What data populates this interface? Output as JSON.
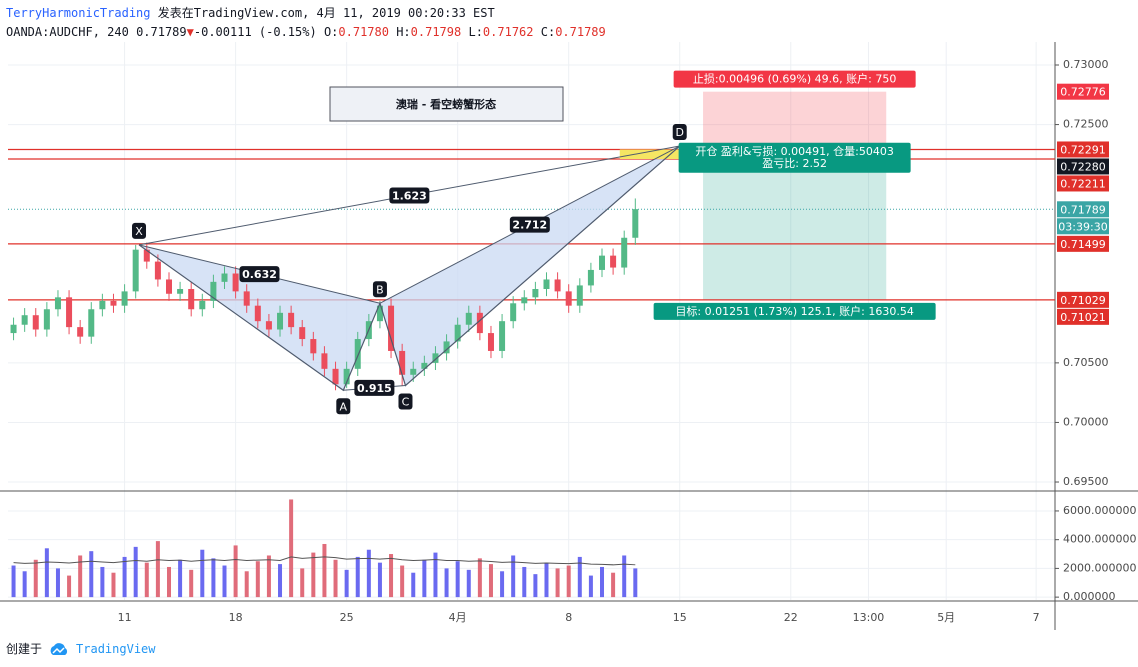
{
  "header": {
    "author": "TerryHarmonicTrading",
    "published": "发表在TradingView.com, 4月 11, 2019 00:20:33 EST",
    "symbol": "OANDA:AUDCHF, 240",
    "last": "0.71789",
    "arrow": "▼",
    "change": "-0.00111 (-0.15%)",
    "ohlc": [
      {
        "label": "O:",
        "value": "0.71780"
      },
      {
        "label": "H:",
        "value": "0.71798"
      },
      {
        "label": "L:",
        "value": "0.71762"
      },
      {
        "label": "C:",
        "value": "0.71789"
      }
    ]
  },
  "chart_data": {
    "type": "candlestick",
    "title": "澳瑞 - 看空螃蟹形态",
    "xlim": [
      -0.5,
      93.8
    ],
    "xticks": [
      {
        "value": 10,
        "label": "11"
      },
      {
        "value": 20,
        "label": "18"
      },
      {
        "value": 30,
        "label": "25"
      },
      {
        "value": 40,
        "label": "4月"
      },
      {
        "value": 50,
        "label": "8"
      },
      {
        "value": 60,
        "label": "15"
      },
      {
        "value": 70,
        "label": "22"
      },
      {
        "value": 77,
        "label": "13:00"
      },
      {
        "value": 84,
        "label": "5月"
      },
      {
        "value": 92.1,
        "label": "7"
      }
    ],
    "ylim": [
      0.69433,
      0.73193
    ],
    "yticks": [
      {
        "value": 0.73,
        "label": "0.73000"
      },
      {
        "value": 0.725,
        "label": "0.72500"
      },
      {
        "value": 0.705,
        "label": "0.70500"
      },
      {
        "value": 0.7,
        "label": "0.70000"
      },
      {
        "value": 0.695,
        "label": "0.69500"
      }
    ],
    "grid": true,
    "up_color": "#53b987",
    "down_color": "#eb4d5c",
    "open": [
      0.7075,
      0.7082,
      0.709,
      0.7078,
      0.7095,
      0.7105,
      0.708,
      0.7072,
      0.7095,
      0.7102,
      0.7098,
      0.711,
      0.7145,
      0.7135,
      0.712,
      0.7108,
      0.7112,
      0.7095,
      0.7102,
      0.7118,
      0.7125,
      0.711,
      0.7098,
      0.7085,
      0.7078,
      0.7092,
      0.708,
      0.707,
      0.7058,
      0.7045,
      0.7032,
      0.7045,
      0.707,
      0.7085,
      0.7098,
      0.706,
      0.704,
      0.7045,
      0.705,
      0.7058,
      0.7068,
      0.7082,
      0.7092,
      0.7075,
      0.706,
      0.7085,
      0.71,
      0.7105,
      0.7112,
      0.712,
      0.711,
      0.7098,
      0.7115,
      0.7128,
      0.714,
      0.713,
      0.7155
    ],
    "high": [
      0.7088,
      0.7096,
      0.7096,
      0.7101,
      0.7111,
      0.7111,
      0.7086,
      0.7101,
      0.7108,
      0.7108,
      0.7116,
      0.7149,
      0.7151,
      0.7141,
      0.7126,
      0.7118,
      0.7118,
      0.7108,
      0.7124,
      0.7131,
      0.7131,
      0.7116,
      0.7104,
      0.7091,
      0.7098,
      0.7098,
      0.7086,
      0.7076,
      0.7064,
      0.7051,
      0.7051,
      0.7076,
      0.7091,
      0.7102,
      0.7104,
      0.7066,
      0.7051,
      0.7056,
      0.7064,
      0.7074,
      0.7088,
      0.7098,
      0.7098,
      0.7081,
      0.7091,
      0.7106,
      0.7111,
      0.7118,
      0.7126,
      0.7126,
      0.7116,
      0.7121,
      0.7134,
      0.7146,
      0.7146,
      0.7161,
      0.7188
    ],
    "low": [
      0.7069,
      0.7076,
      0.7072,
      0.7072,
      0.7089,
      0.7074,
      0.7066,
      0.7066,
      0.7089,
      0.7092,
      0.7092,
      0.7104,
      0.7129,
      0.7114,
      0.7102,
      0.7102,
      0.7089,
      0.7089,
      0.7096,
      0.7112,
      0.7104,
      0.7092,
      0.7079,
      0.7072,
      0.7072,
      0.7074,
      0.7064,
      0.7052,
      0.7039,
      0.7027,
      0.7029,
      0.7039,
      0.7064,
      0.7079,
      0.7054,
      0.7031,
      0.7034,
      0.7039,
      0.7044,
      0.7052,
      0.7062,
      0.7076,
      0.7069,
      0.7054,
      0.7054,
      0.7079,
      0.7094,
      0.7099,
      0.7106,
      0.7104,
      0.7092,
      0.7092,
      0.7109,
      0.7122,
      0.7124,
      0.7124,
      0.7149
    ],
    "close": [
      0.7082,
      0.709,
      0.7078,
      0.7095,
      0.7105,
      0.708,
      0.7072,
      0.7095,
      0.7102,
      0.7098,
      0.711,
      0.7145,
      0.7135,
      0.712,
      0.7108,
      0.7112,
      0.7095,
      0.7102,
      0.7118,
      0.7125,
      0.711,
      0.7098,
      0.7085,
      0.7078,
      0.7092,
      0.708,
      0.707,
      0.7058,
      0.7045,
      0.7032,
      0.7045,
      0.707,
      0.7085,
      0.7098,
      0.706,
      0.704,
      0.7045,
      0.705,
      0.7058,
      0.7068,
      0.7082,
      0.7092,
      0.7075,
      0.706,
      0.7085,
      0.71,
      0.7105,
      0.7112,
      0.712,
      0.711,
      0.7098,
      0.7115,
      0.7128,
      0.714,
      0.713,
      0.7155,
      0.7179
    ],
    "levels": {
      "color": "#e0302a",
      "values": [
        0.72291,
        0.72211,
        0.71499,
        0.71029
      ]
    },
    "last_line": {
      "value": 0.71789,
      "color": "#3aa5a5"
    },
    "price_labels": [
      {
        "value": 0.72776,
        "label": "0.72776",
        "color": "#f23645"
      },
      {
        "value": 0.72291,
        "label": "0.72291",
        "color": "#e0302a"
      },
      {
        "value": 0.7228,
        "label": "0.72280",
        "color": "#131722"
      },
      {
        "value": 0.72211,
        "label": "0.72211",
        "color": "#e0302a"
      },
      {
        "value": 0.71789,
        "label": "0.71789",
        "color": "#3aa5a5"
      },
      {
        "label": "03:39:30",
        "color": "#3aa5a5"
      },
      {
        "value": 0.71499,
        "label": "0.71499",
        "color": "#e0302a"
      },
      {
        "value": 0.71029,
        "label": "0.71029",
        "color": "#e0302a"
      },
      {
        "value": 0.71021,
        "label": "0.71021",
        "color": "#e0302a"
      }
    ],
    "pattern": {
      "color": "#4f5b6e",
      "fill": "#c9d9f3",
      "points": [
        {
          "label": "X",
          "x": 11.3,
          "y": 0.7149
        },
        {
          "label": "A",
          "x": 29.7,
          "y": 0.7027
        },
        {
          "label": "B",
          "x": 33.0,
          "y": 0.71
        },
        {
          "label": "C",
          "x": 35.3,
          "y": 0.7031
        },
        {
          "label": "D",
          "x": 60.0,
          "y": 0.7232
        }
      ],
      "ratios": [
        {
          "label": "1.623",
          "from": 0,
          "to": 4
        },
        {
          "label": "0.632",
          "from": 0,
          "to": 2
        },
        {
          "label": "0.915",
          "from": 1,
          "to": 3
        },
        {
          "label": "2.712",
          "from": 2,
          "to": 4
        }
      ],
      "d_zone": {
        "x": [
          54.6,
          60.0
        ],
        "y": [
          0.72211,
          0.72291
        ],
        "color": "#f5e663"
      }
    },
    "position": {
      "x": [
        62.1,
        78.6
      ],
      "entry": 0.7228,
      "stop": 0.72776,
      "target": 0.71029,
      "stop_text": "止损:0.00496 (0.69%) 49.6, 账户: 750",
      "entry_text": [
        "开仓 盈利&亏损: 0.00491, 仓量:50403",
        "盈亏比: 2.52"
      ],
      "target_text": "目标: 0.01251 (1.73%) 125.1, 账户: 1630.54",
      "stop_color": "#f23645",
      "target_color": "#089981"
    },
    "volume": {
      "values": [
        2200,
        1800,
        2600,
        3400,
        2000,
        1500,
        2900,
        3200,
        2100,
        1700,
        2800,
        3500,
        2400,
        3900,
        2100,
        2600,
        1900,
        3300,
        2700,
        2200,
        3600,
        1800,
        2500,
        2900,
        2300,
        6800,
        2000,
        3100,
        3700,
        2600,
        1900,
        2800,
        3300,
        2400,
        3000,
        2200,
        1700,
        2600,
        3100,
        2000,
        2500,
        1900,
        2700,
        2300,
        1800,
        2900,
        2100,
        1600,
        2400,
        2000,
        2200,
        2800,
        1500,
        2100,
        1700,
        2900,
        2000
      ],
      "ma": [
        2400,
        2350,
        2380,
        2450,
        2420,
        2380,
        2450,
        2500,
        2450,
        2400,
        2480,
        2550,
        2500,
        2600,
        2550,
        2580,
        2500,
        2560,
        2600,
        2550,
        2620,
        2550,
        2580,
        2600,
        2550,
        2800,
        2700,
        2750,
        2800,
        2750,
        2650,
        2680,
        2700,
        2650,
        2700,
        2600,
        2550,
        2580,
        2620,
        2550,
        2550,
        2500,
        2520,
        2480,
        2420,
        2450,
        2400,
        2350,
        2380,
        2350,
        2330,
        2380,
        2300,
        2280,
        2250,
        2300,
        2250
      ],
      "ylim": [
        -200,
        7250
      ],
      "yticks": [
        {
          "value": 6000,
          "label": "6000.000000"
        },
        {
          "value": 4000,
          "label": "4000.000000"
        },
        {
          "value": 2000,
          "label": "2000.000000"
        },
        {
          "value": 0,
          "label": "0.000000"
        }
      ],
      "up_color": "#6a6af0",
      "down_color": "#e06c7a",
      "ma_color": "#555555"
    }
  },
  "footer": {
    "created": "创建于",
    "brand": "TradingView"
  }
}
